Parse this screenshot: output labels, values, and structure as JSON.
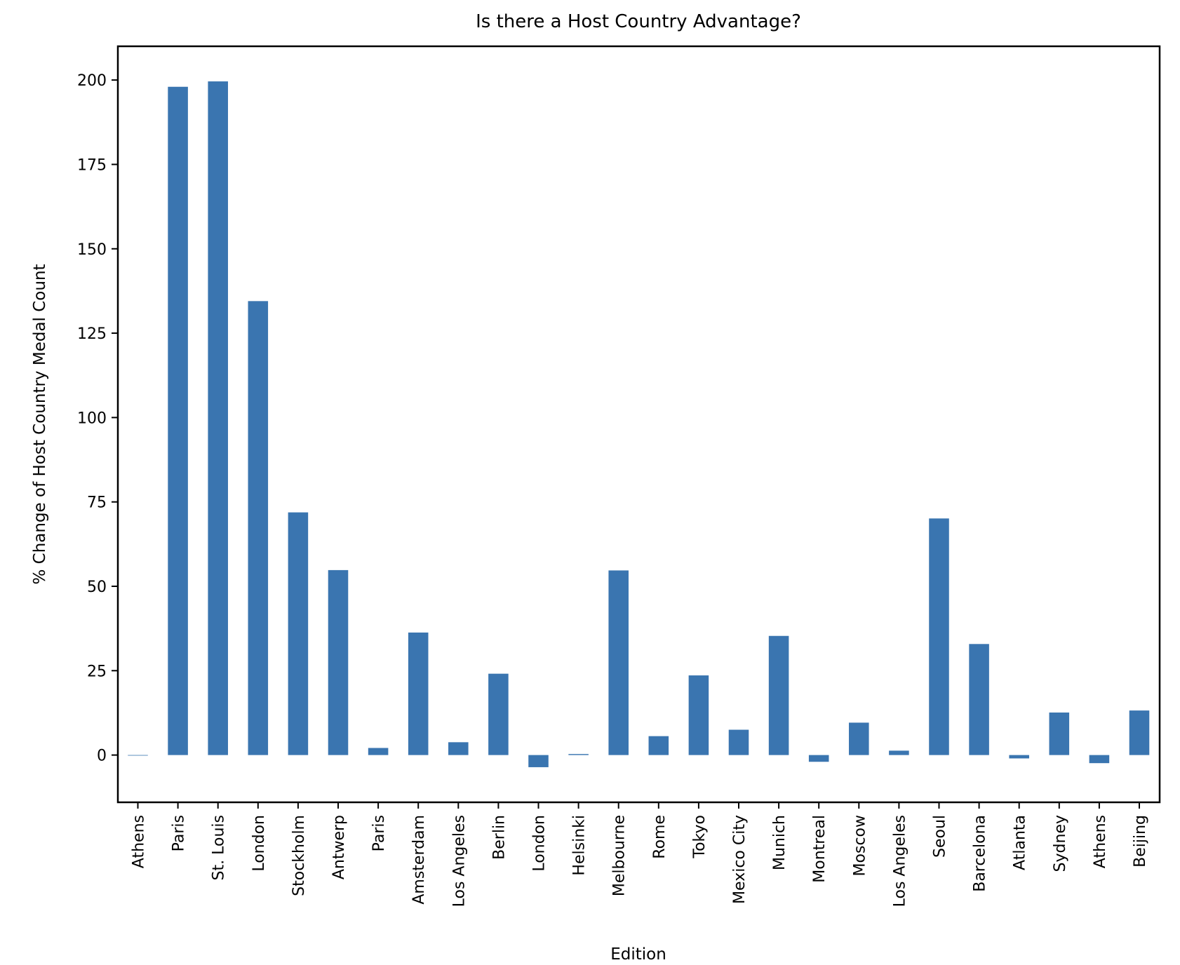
{
  "chart_data": {
    "type": "bar",
    "title": "Is there a Host Country Advantage?",
    "xlabel": "Edition",
    "ylabel": "% Change of Host Country Medal Count",
    "ylim": [
      -14,
      210
    ],
    "yticks": [
      "0",
      "25",
      "50",
      "75",
      "100",
      "125",
      "150",
      "175",
      "200"
    ],
    "grid": false,
    "bar_color": "#3a75b0",
    "categories": [
      "Athens",
      "Paris",
      "St. Louis",
      "London",
      "Stockholm",
      "Antwerp",
      "Paris",
      "Amsterdam",
      "Los Angeles",
      "Berlin",
      "London",
      "Helsinki",
      "Melbourne",
      "Rome",
      "Tokyo",
      "Mexico City",
      "Munich",
      "Montreal",
      "Moscow",
      "Los Angeles",
      "Seoul",
      "Barcelona",
      "Atlanta",
      "Sydney",
      "Athens",
      "Beijing"
    ],
    "values": [
      0,
      198,
      199.6,
      134.5,
      71.9,
      54.8,
      2.1,
      36.3,
      3.8,
      24.1,
      -3.6,
      0.3,
      54.7,
      5.6,
      23.6,
      7.5,
      35.3,
      -2.0,
      9.6,
      1.3,
      70.1,
      32.9,
      -1.0,
      12.6,
      -2.4,
      13.2
    ]
  }
}
